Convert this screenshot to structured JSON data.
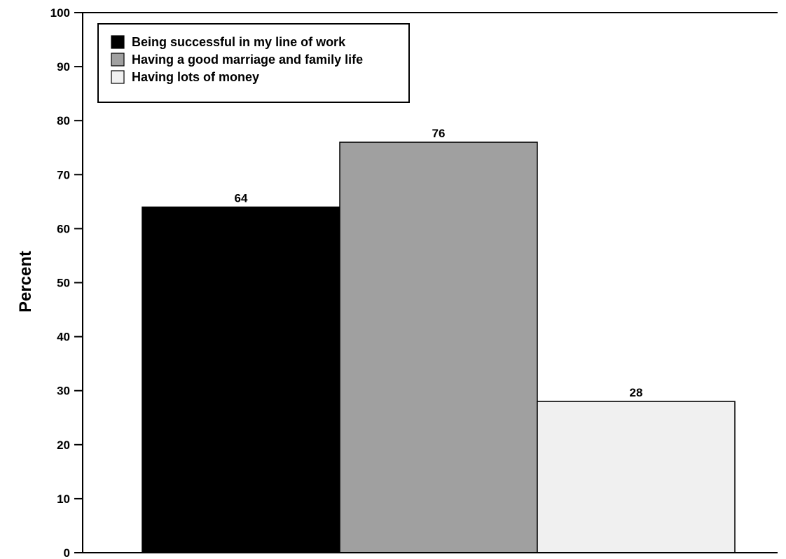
{
  "chart_data": {
    "type": "bar",
    "title": "",
    "xlabel": "",
    "ylabel": "Percent",
    "ylim": [
      0,
      100
    ],
    "yticks": [
      0,
      10,
      20,
      30,
      40,
      50,
      60,
      70,
      80,
      90,
      100
    ],
    "grid": false,
    "legend": "top-left",
    "series": [
      {
        "name": "Being successful in my line of work",
        "value": 64,
        "color": "#000000"
      },
      {
        "name": "Having a good marriage and family life",
        "value": 76,
        "color": "#a0a0a0"
      },
      {
        "name": "Having lots of money",
        "value": 28,
        "color": "#f0f0f0"
      }
    ]
  }
}
